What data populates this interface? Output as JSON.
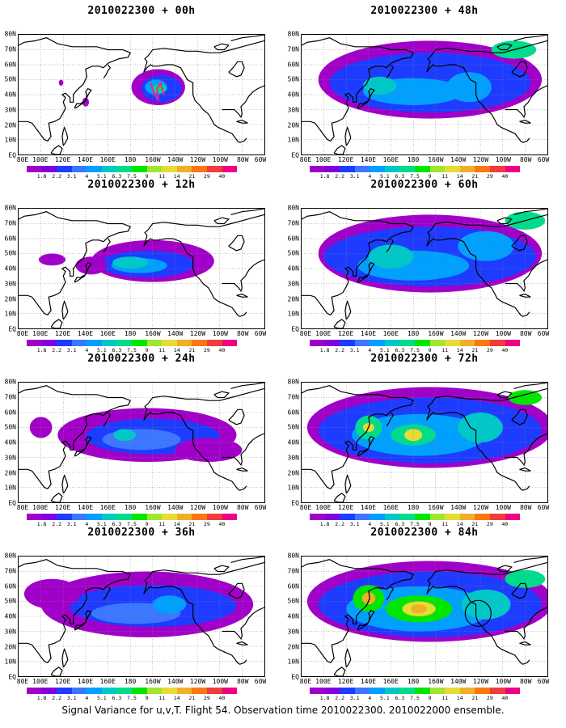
{
  "caption": "Signal Variance for u,v,T. Flight 54. Observation time 2010022300. 2010022000 ensemble.",
  "axes": {
    "y_ticks": [
      "80N",
      "70N",
      "60N",
      "50N",
      "40N",
      "30N",
      "20N",
      "10N",
      "EQ"
    ],
    "x_ticks": [
      "80E",
      "100E",
      "120E",
      "140E",
      "160E",
      "180",
      "160W",
      "140W",
      "120W",
      "100W",
      "80W",
      "60W"
    ]
  },
  "colorbar": {
    "labels": [
      "1.8",
      "2.2",
      "3.1",
      "4",
      "5.1",
      "6.3",
      "7.5",
      "9",
      "11",
      "14",
      "21",
      "29",
      "40"
    ],
    "colors": [
      "#a000c8",
      "#8200dc",
      "#1e3cff",
      "#3c78ff",
      "#00a0ff",
      "#00c8c8",
      "#00dc8c",
      "#00e600",
      "#a0e632",
      "#e6dc32",
      "#f0af28",
      "#fa7814",
      "#f03c3c",
      "#f00082"
    ]
  },
  "panels": [
    {
      "title": "2010022300 + 00h",
      "col": 0,
      "row": 0
    },
    {
      "title": "2010022300 + 12h",
      "col": 0,
      "row": 1
    },
    {
      "title": "2010022300 + 24h",
      "col": 0,
      "row": 2
    },
    {
      "title": "2010022300 + 36h",
      "col": 0,
      "row": 3
    },
    {
      "title": "2010022300 + 48h",
      "col": 1,
      "row": 0
    },
    {
      "title": "2010022300 + 60h",
      "col": 1,
      "row": 1
    },
    {
      "title": "2010022300 + 72h",
      "col": 1,
      "row": 2
    },
    {
      "title": "2010022300 + 84h",
      "col": 1,
      "row": 3
    }
  ],
  "chart_data": [
    {
      "type": "heatmap",
      "title": "2010022300 + 00h",
      "xlim": [
        "80E",
        "60W"
      ],
      "ylim": [
        "EQ",
        "80N"
      ],
      "grid": true,
      "lead_hours": 0,
      "pattern": "localized maximum near 160W, 45N"
    },
    {
      "type": "heatmap",
      "title": "2010022300 + 12h",
      "xlim": [
        "80E",
        "60W"
      ],
      "ylim": [
        "EQ",
        "80N"
      ],
      "grid": true,
      "lead_hours": 12,
      "pattern": "band spreading east-west over north Pacific"
    },
    {
      "type": "heatmap",
      "title": "2010022300 + 24h",
      "xlim": [
        "80E",
        "60W"
      ],
      "ylim": [
        "EQ",
        "80N"
      ],
      "grid": true,
      "lead_hours": 24,
      "pattern": "broad band 25N-60N across Pacific"
    },
    {
      "type": "heatmap",
      "title": "2010022300 + 36h",
      "xlim": [
        "80E",
        "60W"
      ],
      "ylim": [
        "EQ",
        "80N"
      ],
      "grid": true,
      "lead_hours": 36,
      "pattern": "band covering north Pacific into North America"
    },
    {
      "type": "heatmap",
      "title": "2010022300 + 48h",
      "xlim": [
        "80E",
        "60W"
      ],
      "ylim": [
        "EQ",
        "80N"
      ],
      "grid": true,
      "lead_hours": 48,
      "pattern": "hemispheric coverage, cyan-green maxima"
    },
    {
      "type": "heatmap",
      "title": "2010022300 + 60h",
      "xlim": [
        "80E",
        "60W"
      ],
      "ylim": [
        "EQ",
        "80N"
      ],
      "grid": true,
      "lead_hours": 60,
      "pattern": "hemispheric coverage, green maxima"
    },
    {
      "type": "heatmap",
      "title": "2010022300 + 72h",
      "xlim": [
        "80E",
        "60W"
      ],
      "ylim": [
        "EQ",
        "80N"
      ],
      "grid": true,
      "lead_hours": 72,
      "pattern": "yellow maxima near 140E and 180, 45N"
    },
    {
      "type": "heatmap",
      "title": "2010022300 + 84h",
      "xlim": [
        "80E",
        "60W"
      ],
      "ylim": [
        "EQ",
        "80N"
      ],
      "grid": true,
      "lead_hours": 84,
      "pattern": "orange maxima near 140E and 170W, 45N; target circle near 125W, 45N"
    }
  ]
}
